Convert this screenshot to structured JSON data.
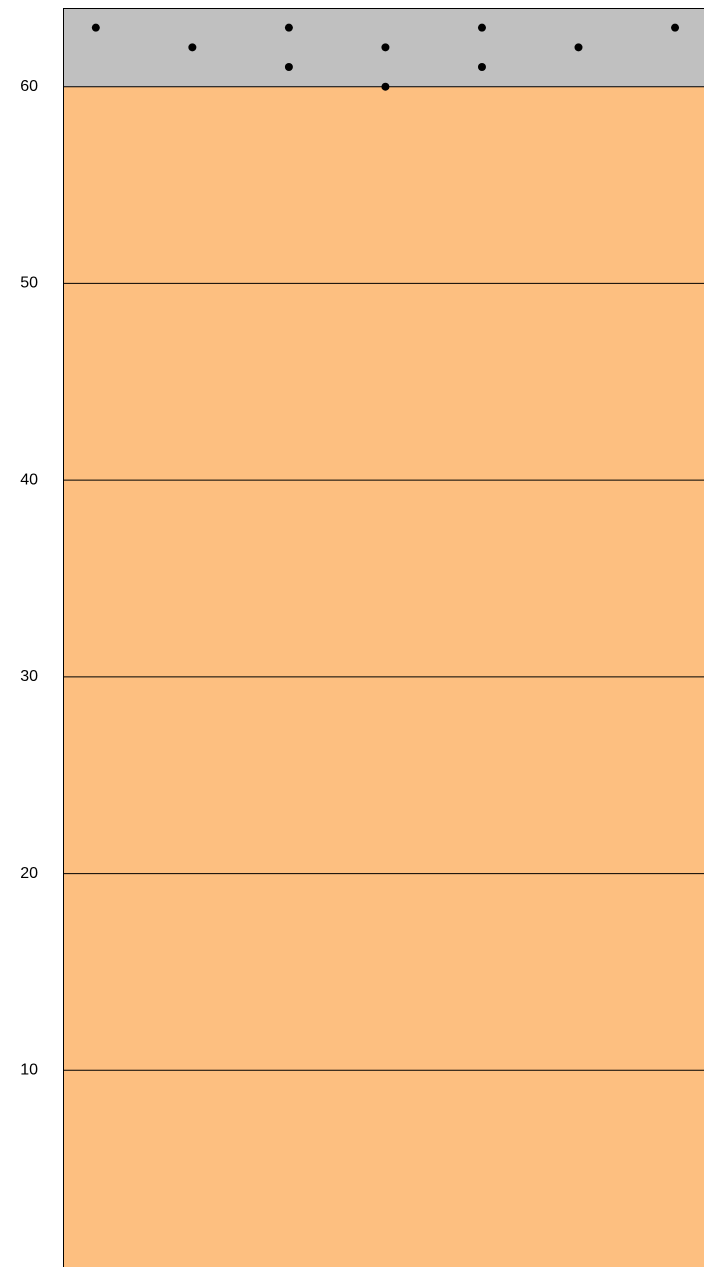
{
  "chart_data": {
    "type": "scatter",
    "x": [
      1,
      2,
      3,
      3,
      4,
      4,
      5,
      5,
      6,
      7
    ],
    "series": [
      {
        "color": "#000000",
        "values": [
          63,
          62,
          63,
          61,
          62,
          60,
          63,
          61,
          62,
          63
        ]
      }
    ],
    "bands": [
      {
        "from": 0,
        "to": 60,
        "color": "#fdbf80"
      },
      {
        "from": 60,
        "to": 64,
        "color": "#c0c0c0"
      }
    ],
    "xlim": [
      0.66,
      7.3
    ],
    "ylim": [
      0,
      64
    ],
    "yticks": [
      10,
      20,
      30,
      40,
      50,
      60
    ],
    "grid": true
  }
}
